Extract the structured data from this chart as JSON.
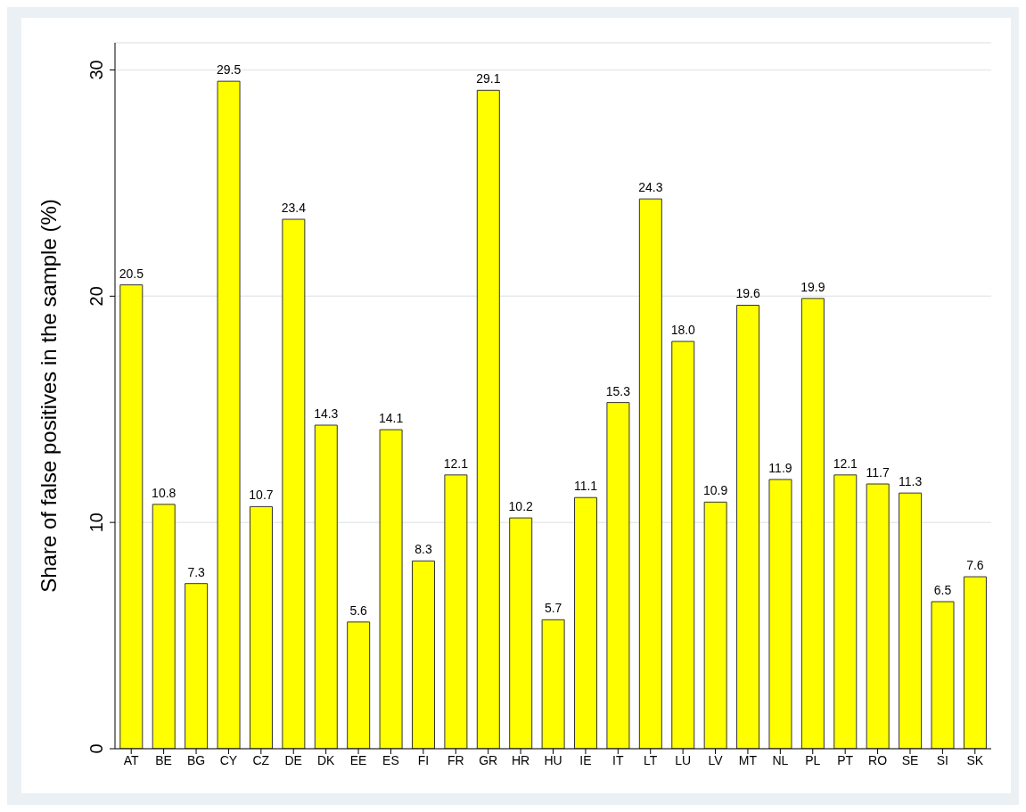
{
  "chart_data": {
    "type": "bar",
    "ylabel": "Share of false positives in the sample (%)",
    "categories": [
      "AT",
      "BE",
      "BG",
      "CY",
      "CZ",
      "DE",
      "DK",
      "EE",
      "ES",
      "FI",
      "FR",
      "GR",
      "HR",
      "HU",
      "IE",
      "IT",
      "LT",
      "LU",
      "LV",
      "MT",
      "NL",
      "PL",
      "PT",
      "RO",
      "SE",
      "SI",
      "SK"
    ],
    "values": [
      20.5,
      10.8,
      7.3,
      29.5,
      10.7,
      23.4,
      14.3,
      5.6,
      14.1,
      8.3,
      12.1,
      29.1,
      10.2,
      5.7,
      11.1,
      15.3,
      24.3,
      18.0,
      10.9,
      19.6,
      11.9,
      19.9,
      12.1,
      11.7,
      11.3,
      6.5,
      7.6
    ],
    "value_labels": [
      "20.5",
      "10.8",
      "7.3",
      "29.5",
      "10.7",
      "23.4",
      "14.3",
      "5.6",
      "14.1",
      "8.3",
      "12.1",
      "29.1",
      "10.2",
      "5.7",
      "11.1",
      "15.3",
      "24.3",
      "18.0",
      "10.9",
      "19.6",
      "11.9",
      "19.9",
      "12.1",
      "11.7",
      "11.3",
      "6.5",
      "7.6"
    ],
    "color": "#ffff00",
    "ylim": [
      0,
      31.2
    ],
    "yticks": [
      0,
      10,
      20,
      30
    ],
    "grid": "y"
  }
}
